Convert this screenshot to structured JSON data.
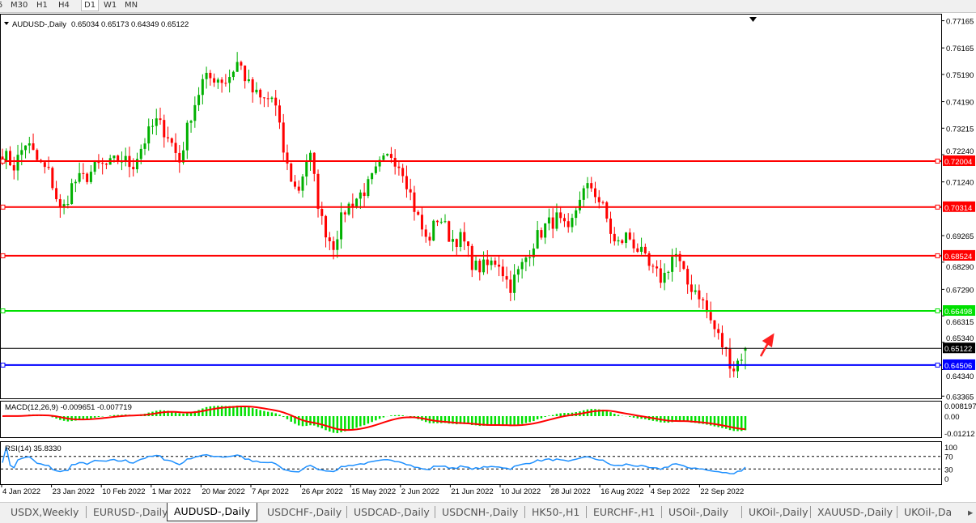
{
  "toolbar": {
    "timeframes": [
      "5",
      "M30",
      "H1",
      "H4",
      "D1",
      "W1",
      "MN"
    ],
    "active": "D1"
  },
  "chart": {
    "header": "AUDUSD-,Daily",
    "ohlc": "0.65034 0.65173 0.64349 0.65122",
    "price_ticks": [
      "0.77165",
      "0.76165",
      "0.75190",
      "0.74190",
      "0.73215",
      "0.72240",
      "0.71240",
      "0.69265",
      "0.68290",
      "0.67290",
      "0.66315",
      "0.65340",
      "0.64340",
      "0.63365"
    ],
    "levels": [
      {
        "price": "0.72004",
        "color": "#ff0000"
      },
      {
        "price": "0.70314",
        "color": "#ff0000"
      },
      {
        "price": "0.68524",
        "color": "#ff0000"
      },
      {
        "price": "0.66498",
        "color": "#00e000"
      },
      {
        "price": "0.64506",
        "color": "#0000ff"
      }
    ],
    "current_price": "0.65122",
    "bull_color": "#00b000",
    "bear_color": "#ff0000",
    "date_labels": [
      "4 Jan 2022",
      "23 Jan 2022",
      "10 Feb 2022",
      "1 Mar 2022",
      "20 Mar 2022",
      "7 Apr 2022",
      "26 Apr 2022",
      "15 May 2022",
      "2 Jun 2022",
      "21 Jun 2022",
      "10 Jul 2022",
      "28 Jul 2022",
      "16 Aug 2022",
      "4 Sep 2022",
      "22 Sep 2022"
    ],
    "approx_close_path": [
      0.72272,
      0.71825,
      0.72718,
      0.71974,
      0.71528,
      0.7004,
      0.7123,
      0.71379,
      0.71825,
      0.71825,
      0.72123,
      0.71825,
      0.72718,
      0.73462,
      0.73016,
      0.71974,
      0.7376,
      0.7495,
      0.75099,
      0.7495,
      0.75695,
      0.74653,
      0.74206,
      0.74355,
      0.71974,
      0.70784,
      0.72421,
      0.69891,
      0.68849,
      0.70189,
      0.70635,
      0.71081,
      0.71825,
      0.72272,
      0.71677,
      0.70189,
      0.68998,
      0.7004,
      0.69147,
      0.69147,
      0.68105,
      0.68105,
      0.68403,
      0.67361,
      0.68105,
      0.68998,
      0.69593,
      0.69891,
      0.69296,
      0.70784,
      0.71081,
      0.70189,
      0.68849,
      0.69296,
      0.687,
      0.67956,
      0.67659,
      0.687,
      0.6751,
      0.67212,
      0.66171,
      0.65278,
      0.64385,
      0.65122
    ],
    "arrow": "up-arrow"
  },
  "macd": {
    "label": "MACD(12,26,9) -0.009651 -0.007719",
    "ticks": [
      "0.008197",
      "0.00",
      "-0.01212"
    ]
  },
  "rsi": {
    "label": "RSI(14) 35.8330",
    "ticks": [
      "100",
      "70",
      "30",
      "0"
    ],
    "levels": [
      70,
      30
    ]
  },
  "tabs": [
    "USDX,Weekly",
    "EURUSD-,Daily",
    "AUDUSD-,Daily",
    "USDCHF-,Daily",
    "USDCAD-,Daily",
    "USDCNH-,Daily",
    "HK50-,H1",
    "EURCHF-,H1",
    "USOil-,Daily",
    "UKOil-,Daily",
    "XAUUSD-,Daily",
    "UKOil-,Da"
  ],
  "active_tab": "AUDUSD-,Daily"
}
